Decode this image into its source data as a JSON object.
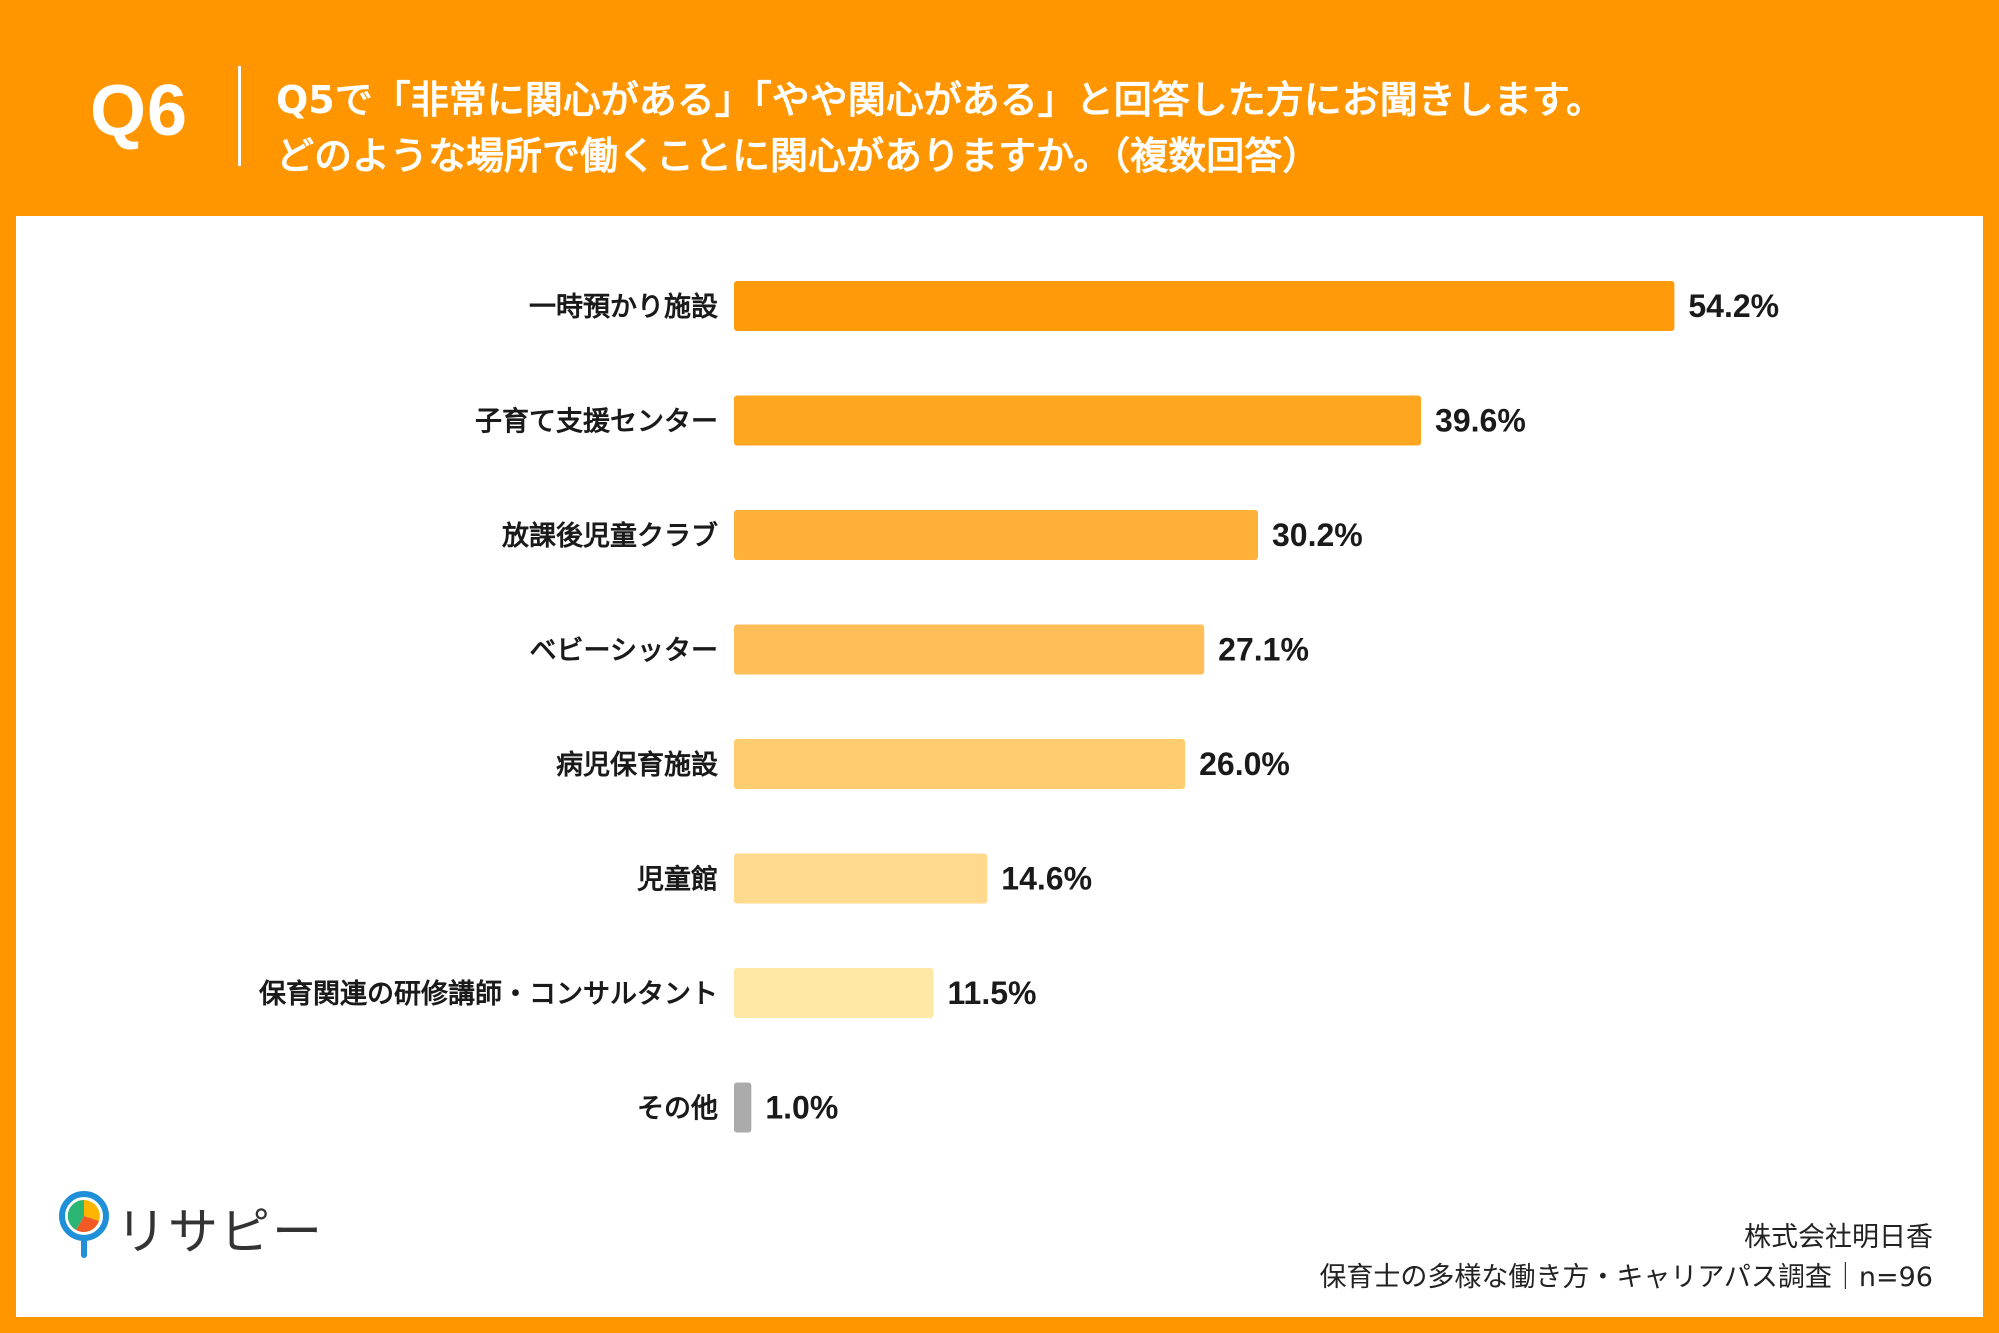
{
  "header": {
    "question_number": "Q6",
    "question_line1": "Q5で「非常に関心がある」「やや関心がある」と回答した方にお聞きします。",
    "question_line2": "どのような場所で働くことに関心がありますか。（複数回答）"
  },
  "chart_data": {
    "type": "bar",
    "orientation": "horizontal",
    "categories": [
      "一時預かり施設",
      "子育て支援センター",
      "放課後児童クラブ",
      "ベビーシッター",
      "病児保育施設",
      "児童館",
      "保育関連の研修講師・コンサルタント",
      "その他"
    ],
    "values": [
      54.2,
      39.6,
      30.2,
      27.1,
      26.0,
      14.6,
      11.5,
      1.0
    ],
    "value_labels": [
      "54.2%",
      "39.6%",
      "30.2%",
      "27.1%",
      "26.0%",
      "14.6%",
      "11.5%",
      "1.0%"
    ],
    "colors": [
      "#FF9A0B",
      "#FFA620",
      "#FFB039",
      "#FFBE57",
      "#FFCC70",
      "#FFDA8E",
      "#FFE7A6",
      "#ABABAB"
    ],
    "grid": false,
    "legend": "none"
  },
  "logo": {
    "text": "リサピー"
  },
  "credit": {
    "company": "株式会社明日香",
    "survey": "保育士の多様な働き方・キャリアパス調査｜n=96"
  },
  "colors": {
    "background": "#FF9600",
    "panel": "#FFFFFF",
    "text": "#1A1A1A"
  }
}
